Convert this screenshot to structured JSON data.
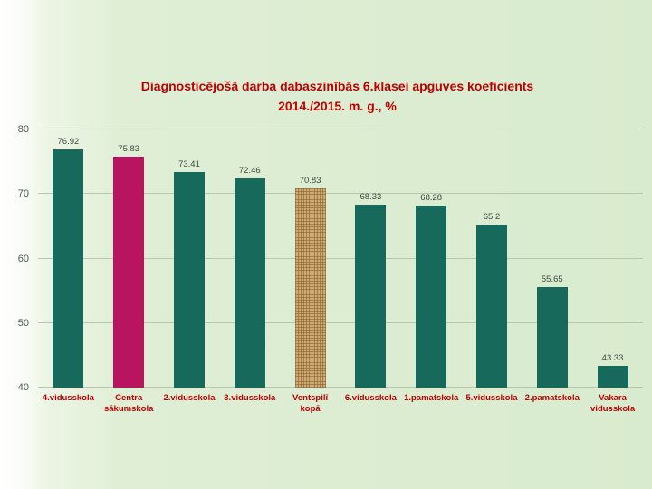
{
  "title": {
    "line1": "Diagnosticējošā darba dabaszinībās 6.klasei apguves koeficients",
    "line2": "2014./2015. m. g., %"
  },
  "chart_data": {
    "type": "bar",
    "title": "Diagnosticējošā darba dabaszinībās 6.klasei apguves koeficients 2014./2015. m. g., %",
    "categories": [
      "4.vidusskola",
      "Centra sākumskola",
      "2.vidusskola",
      "3.vidusskola",
      "Ventspilī kopā",
      "6.vidusskola",
      "1.pamatskola",
      "5.vidusskola",
      "2.pamatskola",
      "Vakara vidusskola"
    ],
    "values": [
      76.92,
      75.83,
      73.41,
      72.46,
      70.83,
      68.33,
      68.28,
      65.2,
      55.65,
      43.33
    ],
    "value_labels": [
      "76.92",
      "75.83",
      "73.41",
      "72.46",
      "70.83",
      "68.33",
      "68.28",
      "65.2",
      "55.65",
      "43.33"
    ],
    "bar_colors": [
      "#17695b",
      "#b8145f",
      "#17695b",
      "#17695b",
      "#d0aa72",
      "#17695b",
      "#17695b",
      "#17695b",
      "#17695b",
      "#17695b"
    ],
    "patterned_index": 4,
    "ylim": [
      40,
      80
    ],
    "yticks": [
      80,
      70,
      60,
      50,
      40
    ],
    "grid": true,
    "legend_position": "none",
    "xlabel": "",
    "ylabel": ""
  },
  "colors": {
    "bar_teal": "#17695b",
    "bar_crimson": "#b8145f",
    "bar_tan": "#d0aa72",
    "title_red": "#c00000",
    "category_label_red": "#c00000",
    "background_green": "#dcecd2",
    "gridline": "#b6c7ae"
  }
}
